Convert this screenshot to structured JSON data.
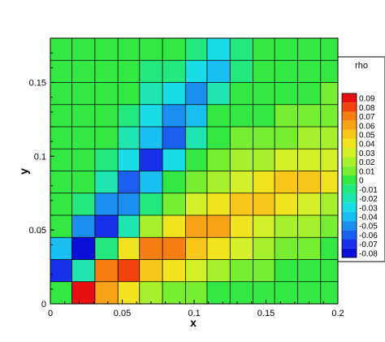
{
  "chart_data": {
    "type": "heatmap",
    "xlabel": "x",
    "ylabel": "y",
    "xlim": [
      0,
      0.2
    ],
    "ylim": [
      0,
      0.18
    ],
    "x_ticks": [
      "0",
      "0.05",
      "0.1",
      "0.15",
      "0.2"
    ],
    "x_tick_values": [
      0,
      0.05,
      0.1,
      0.15,
      0.2
    ],
    "y_ticks": [
      "0",
      "0.05",
      "0.1",
      "0.15"
    ],
    "y_tick_values": [
      0,
      0.05,
      0.1,
      0.15
    ],
    "x_edges": [
      0,
      0.015,
      0.031,
      0.047,
      0.062,
      0.078,
      0.094,
      0.109,
      0.125,
      0.141,
      0.156,
      0.172,
      0.188,
      0.2
    ],
    "y_edges": [
      0,
      0.015,
      0.03,
      0.045,
      0.06,
      0.075,
      0.09,
      0.105,
      0.12,
      0.135,
      0.15,
      0.165,
      0.18
    ],
    "grid": true,
    "legend": {
      "title": "rho",
      "placement": "right",
      "levels": [
        "0.09",
        "0.08",
        "0.07",
        "0.06",
        "0.05",
        "0.04",
        "0.03",
        "0.02",
        "0.01",
        "0",
        "-0.01",
        "-0.02",
        "-0.03",
        "-0.04",
        "-0.05",
        "-0.06",
        "-0.07",
        "-0.08"
      ],
      "colors": [
        "#e8100e",
        "#f2420e",
        "#f77e14",
        "#f9a216",
        "#f9c719",
        "#f0e420",
        "#d4f028",
        "#a6f02d",
        "#78ee33",
        "#33e843",
        "#23e87e",
        "#1fe6b0",
        "#1adce6",
        "#18bff0",
        "#1b8ff0",
        "#1a5ff0",
        "#1730ea",
        "#0a10d8"
      ],
      "bar_top_value": 0.095,
      "bar_bottom_value": -0.085
    },
    "values": [
      [
        0.0,
        0.09,
        0.06,
        0.04,
        0.02,
        0.01,
        0.01,
        0.0,
        0.0,
        0.0,
        0.0,
        0.0,
        0.0
      ],
      [
        -0.07,
        -0.02,
        0.07,
        0.08,
        0.05,
        0.04,
        0.03,
        0.02,
        0.01,
        0.01,
        0.0,
        0.0,
        0.0
      ],
      [
        -0.04,
        -0.08,
        -0.01,
        0.04,
        0.07,
        0.07,
        0.05,
        0.04,
        0.03,
        0.02,
        0.01,
        0.01,
        0.0
      ],
      [
        0.0,
        -0.05,
        -0.07,
        -0.02,
        0.02,
        0.04,
        0.06,
        0.06,
        0.04,
        0.03,
        0.02,
        0.02,
        0.01
      ],
      [
        0.0,
        -0.01,
        -0.05,
        -0.05,
        -0.01,
        0.01,
        0.03,
        0.04,
        0.05,
        0.05,
        0.04,
        0.03,
        0.02
      ],
      [
        0.0,
        0.0,
        -0.02,
        -0.06,
        -0.04,
        0.0,
        0.01,
        0.02,
        0.03,
        0.04,
        0.05,
        0.05,
        0.04
      ],
      [
        0.0,
        0.0,
        -0.01,
        -0.03,
        -0.07,
        -0.03,
        0.0,
        0.01,
        0.02,
        0.02,
        0.03,
        0.03,
        0.03
      ],
      [
        0.0,
        0.0,
        0.0,
        -0.02,
        -0.04,
        -0.06,
        -0.02,
        0.0,
        0.01,
        0.01,
        0.01,
        0.02,
        0.02
      ],
      [
        0.0,
        0.0,
        0.0,
        -0.01,
        -0.03,
        -0.05,
        -0.04,
        0.0,
        0.0,
        0.0,
        0.01,
        0.01,
        0.01
      ],
      [
        0.0,
        0.0,
        0.0,
        0.0,
        -0.02,
        -0.03,
        -0.05,
        -0.02,
        0.0,
        0.0,
        0.0,
        0.0,
        0.01
      ],
      [
        0.0,
        0.0,
        0.0,
        0.0,
        -0.01,
        -0.01,
        -0.03,
        -0.04,
        -0.01,
        0.0,
        0.0,
        0.0,
        0.0
      ],
      [
        0.0,
        0.0,
        0.0,
        0.0,
        0.0,
        0.0,
        -0.01,
        -0.03,
        -0.01,
        0.0,
        0.0,
        0.0,
        0.0
      ]
    ]
  }
}
